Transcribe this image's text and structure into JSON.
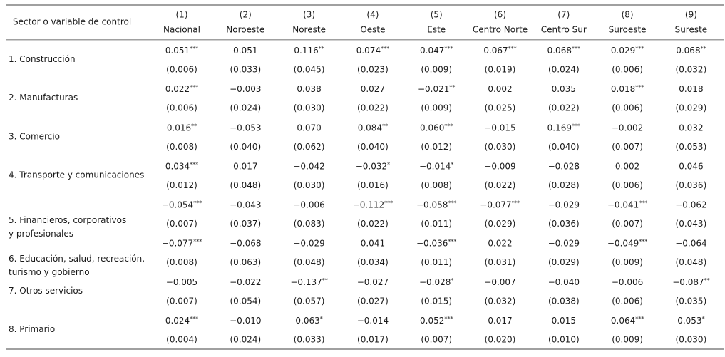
{
  "header": {
    "label": "Sector o variable de control",
    "columns": [
      {
        "num": "(1)",
        "name": "Nacional"
      },
      {
        "num": "(2)",
        "name": "Noroeste"
      },
      {
        "num": "(3)",
        "name": "Noreste"
      },
      {
        "num": "(4)",
        "name": "Oeste"
      },
      {
        "num": "(5)",
        "name": "Este"
      },
      {
        "num": "(6)",
        "name": "Centro Norte"
      },
      {
        "num": "(7)",
        "name": "Centro Sur"
      },
      {
        "num": "(8)",
        "name": "Suroeste"
      },
      {
        "num": "(9)",
        "name": "Sureste"
      }
    ]
  },
  "rows": [
    {
      "label": [
        "1. Construcción"
      ],
      "coef": [
        {
          "v": "0.051",
          "sig": "***"
        },
        {
          "v": "0.051"
        },
        {
          "v": "0.116",
          "sig": "**"
        },
        {
          "v": "0.074",
          "sig": "***"
        },
        {
          "v": "0.047",
          "sig": "***"
        },
        {
          "v": "0.067",
          "sig": "***"
        },
        {
          "v": "0.068",
          "sig": "***"
        },
        {
          "v": "0.029",
          "sig": "***"
        },
        {
          "v": "0.068",
          "sig": "**"
        }
      ],
      "se": [
        "(0.006)",
        "(0.033)",
        "(0.045)",
        "(0.023)",
        "(0.009)",
        "(0.019)",
        "(0.024)",
        "(0.006)",
        "(0.032)"
      ]
    },
    {
      "label": [
        "2. Manufacturas"
      ],
      "coef": [
        {
          "v": "0.022",
          "sig": "***"
        },
        {
          "v": "−0.003"
        },
        {
          "v": "0.038"
        },
        {
          "v": "0.027"
        },
        {
          "v": "−0.021",
          "sig": "**"
        },
        {
          "v": "0.002"
        },
        {
          "v": "0.035"
        },
        {
          "v": "0.018",
          "sig": "***"
        },
        {
          "v": "0.018"
        }
      ],
      "se": [
        "(0.006)",
        "(0.024)",
        "(0.030)",
        "(0.022)",
        "(0.009)",
        "(0.025)",
        "(0.022)",
        "(0.006)",
        "(0.029)"
      ]
    },
    {
      "label": [
        "3. Comercio"
      ],
      "coef": [
        {
          "v": "0.016",
          "sig": "**"
        },
        {
          "v": "−0.053"
        },
        {
          "v": "0.070"
        },
        {
          "v": "0.084",
          "sig": "**"
        },
        {
          "v": "0.060",
          "sig": "***"
        },
        {
          "v": "−0.015"
        },
        {
          "v": "0.169",
          "sig": "***"
        },
        {
          "v": "−0.002"
        },
        {
          "v": "0.032"
        }
      ],
      "se": [
        "(0.008)",
        "(0.040)",
        "(0.062)",
        "(0.040)",
        "(0.012)",
        "(0.030)",
        "(0.040)",
        "(0.007)",
        "(0.053)"
      ]
    },
    {
      "label": [
        "4. Transporte y comunicaciones"
      ],
      "coef": [
        {
          "v": "0.034",
          "sig": "***"
        },
        {
          "v": "0.017"
        },
        {
          "v": "−0.042"
        },
        {
          "v": "−0.032",
          "sig": "*"
        },
        {
          "v": "−0.014",
          "sig": "*"
        },
        {
          "v": "−0.009"
        },
        {
          "v": "−0.028"
        },
        {
          "v": "0.002"
        },
        {
          "v": "0.046"
        }
      ],
      "se": [
        "(0.012)",
        "(0.048)",
        "(0.030)",
        "(0.016)",
        "(0.008)",
        "(0.022)",
        "(0.028)",
        "(0.006)",
        "(0.036)"
      ]
    },
    {
      "label": [
        "5. Financieros, corporativos",
        "y profesionales"
      ],
      "coef": [
        {
          "v": "−0.054",
          "sig": "***"
        },
        {
          "v": "−0.043"
        },
        {
          "v": "−0.006"
        },
        {
          "v": "−0.112",
          "sig": "***"
        },
        {
          "v": "−0.058",
          "sig": "***"
        },
        {
          "v": "−0.077",
          "sig": "***"
        },
        {
          "v": "−0.029"
        },
        {
          "v": "−0.041",
          "sig": "***"
        },
        {
          "v": "−0.062"
        }
      ],
      "se": [
        "(0.007)",
        "(0.037)",
        "(0.083)",
        "(0.022)",
        "(0.011)",
        "(0.029)",
        "(0.036)",
        "(0.007)",
        "(0.043)"
      ]
    },
    {
      "label": [
        "6. Educación, salud, recreación,",
        "turismo y gobierno"
      ],
      "coef": [
        {
          "v": "−0.077",
          "sig": "***"
        },
        {
          "v": "−0.068"
        },
        {
          "v": "−0.029"
        },
        {
          "v": "0.041"
        },
        {
          "v": "−0.036",
          "sig": "***"
        },
        {
          "v": "0.022"
        },
        {
          "v": "−0.029"
        },
        {
          "v": "−0.049",
          "sig": "***"
        },
        {
          "v": "−0.064"
        }
      ],
      "se": [
        "(0.008)",
        "(0.063)",
        "(0.048)",
        "(0.034)",
        "(0.011)",
        "(0.031)",
        "(0.029)",
        "(0.009)",
        "(0.048)"
      ]
    },
    {
      "label": [
        "7. Otros servicios"
      ],
      "coef": [
        {
          "v": "−0.005"
        },
        {
          "v": "−0.022"
        },
        {
          "v": "−0.137",
          "sig": "**"
        },
        {
          "v": "−0.027"
        },
        {
          "v": "−0.028",
          "sig": "*"
        },
        {
          "v": "−0.007"
        },
        {
          "v": "−0.040"
        },
        {
          "v": "−0.006"
        },
        {
          "v": "−0.087",
          "sig": "**"
        }
      ],
      "se": [
        "(0.007)",
        "(0.054)",
        "(0.057)",
        "(0.027)",
        "(0.015)",
        "(0.032)",
        "(0.038)",
        "(0.006)",
        "(0.035)"
      ]
    },
    {
      "label": [
        "8. Primario"
      ],
      "coef": [
        {
          "v": "0.024",
          "sig": "***"
        },
        {
          "v": "−0.010"
        },
        {
          "v": "0.063",
          "sig": "*"
        },
        {
          "v": "−0.014"
        },
        {
          "v": "0.052",
          "sig": "***"
        },
        {
          "v": "0.017"
        },
        {
          "v": "0.015"
        },
        {
          "v": "0.064",
          "sig": "***"
        },
        {
          "v": "0.053",
          "sig": "*"
        }
      ],
      "se": [
        "(0.004)",
        "(0.024)",
        "(0.033)",
        "(0.017)",
        "(0.007)",
        "(0.020)",
        "(0.010)",
        "(0.009)",
        "(0.030)"
      ]
    }
  ]
}
